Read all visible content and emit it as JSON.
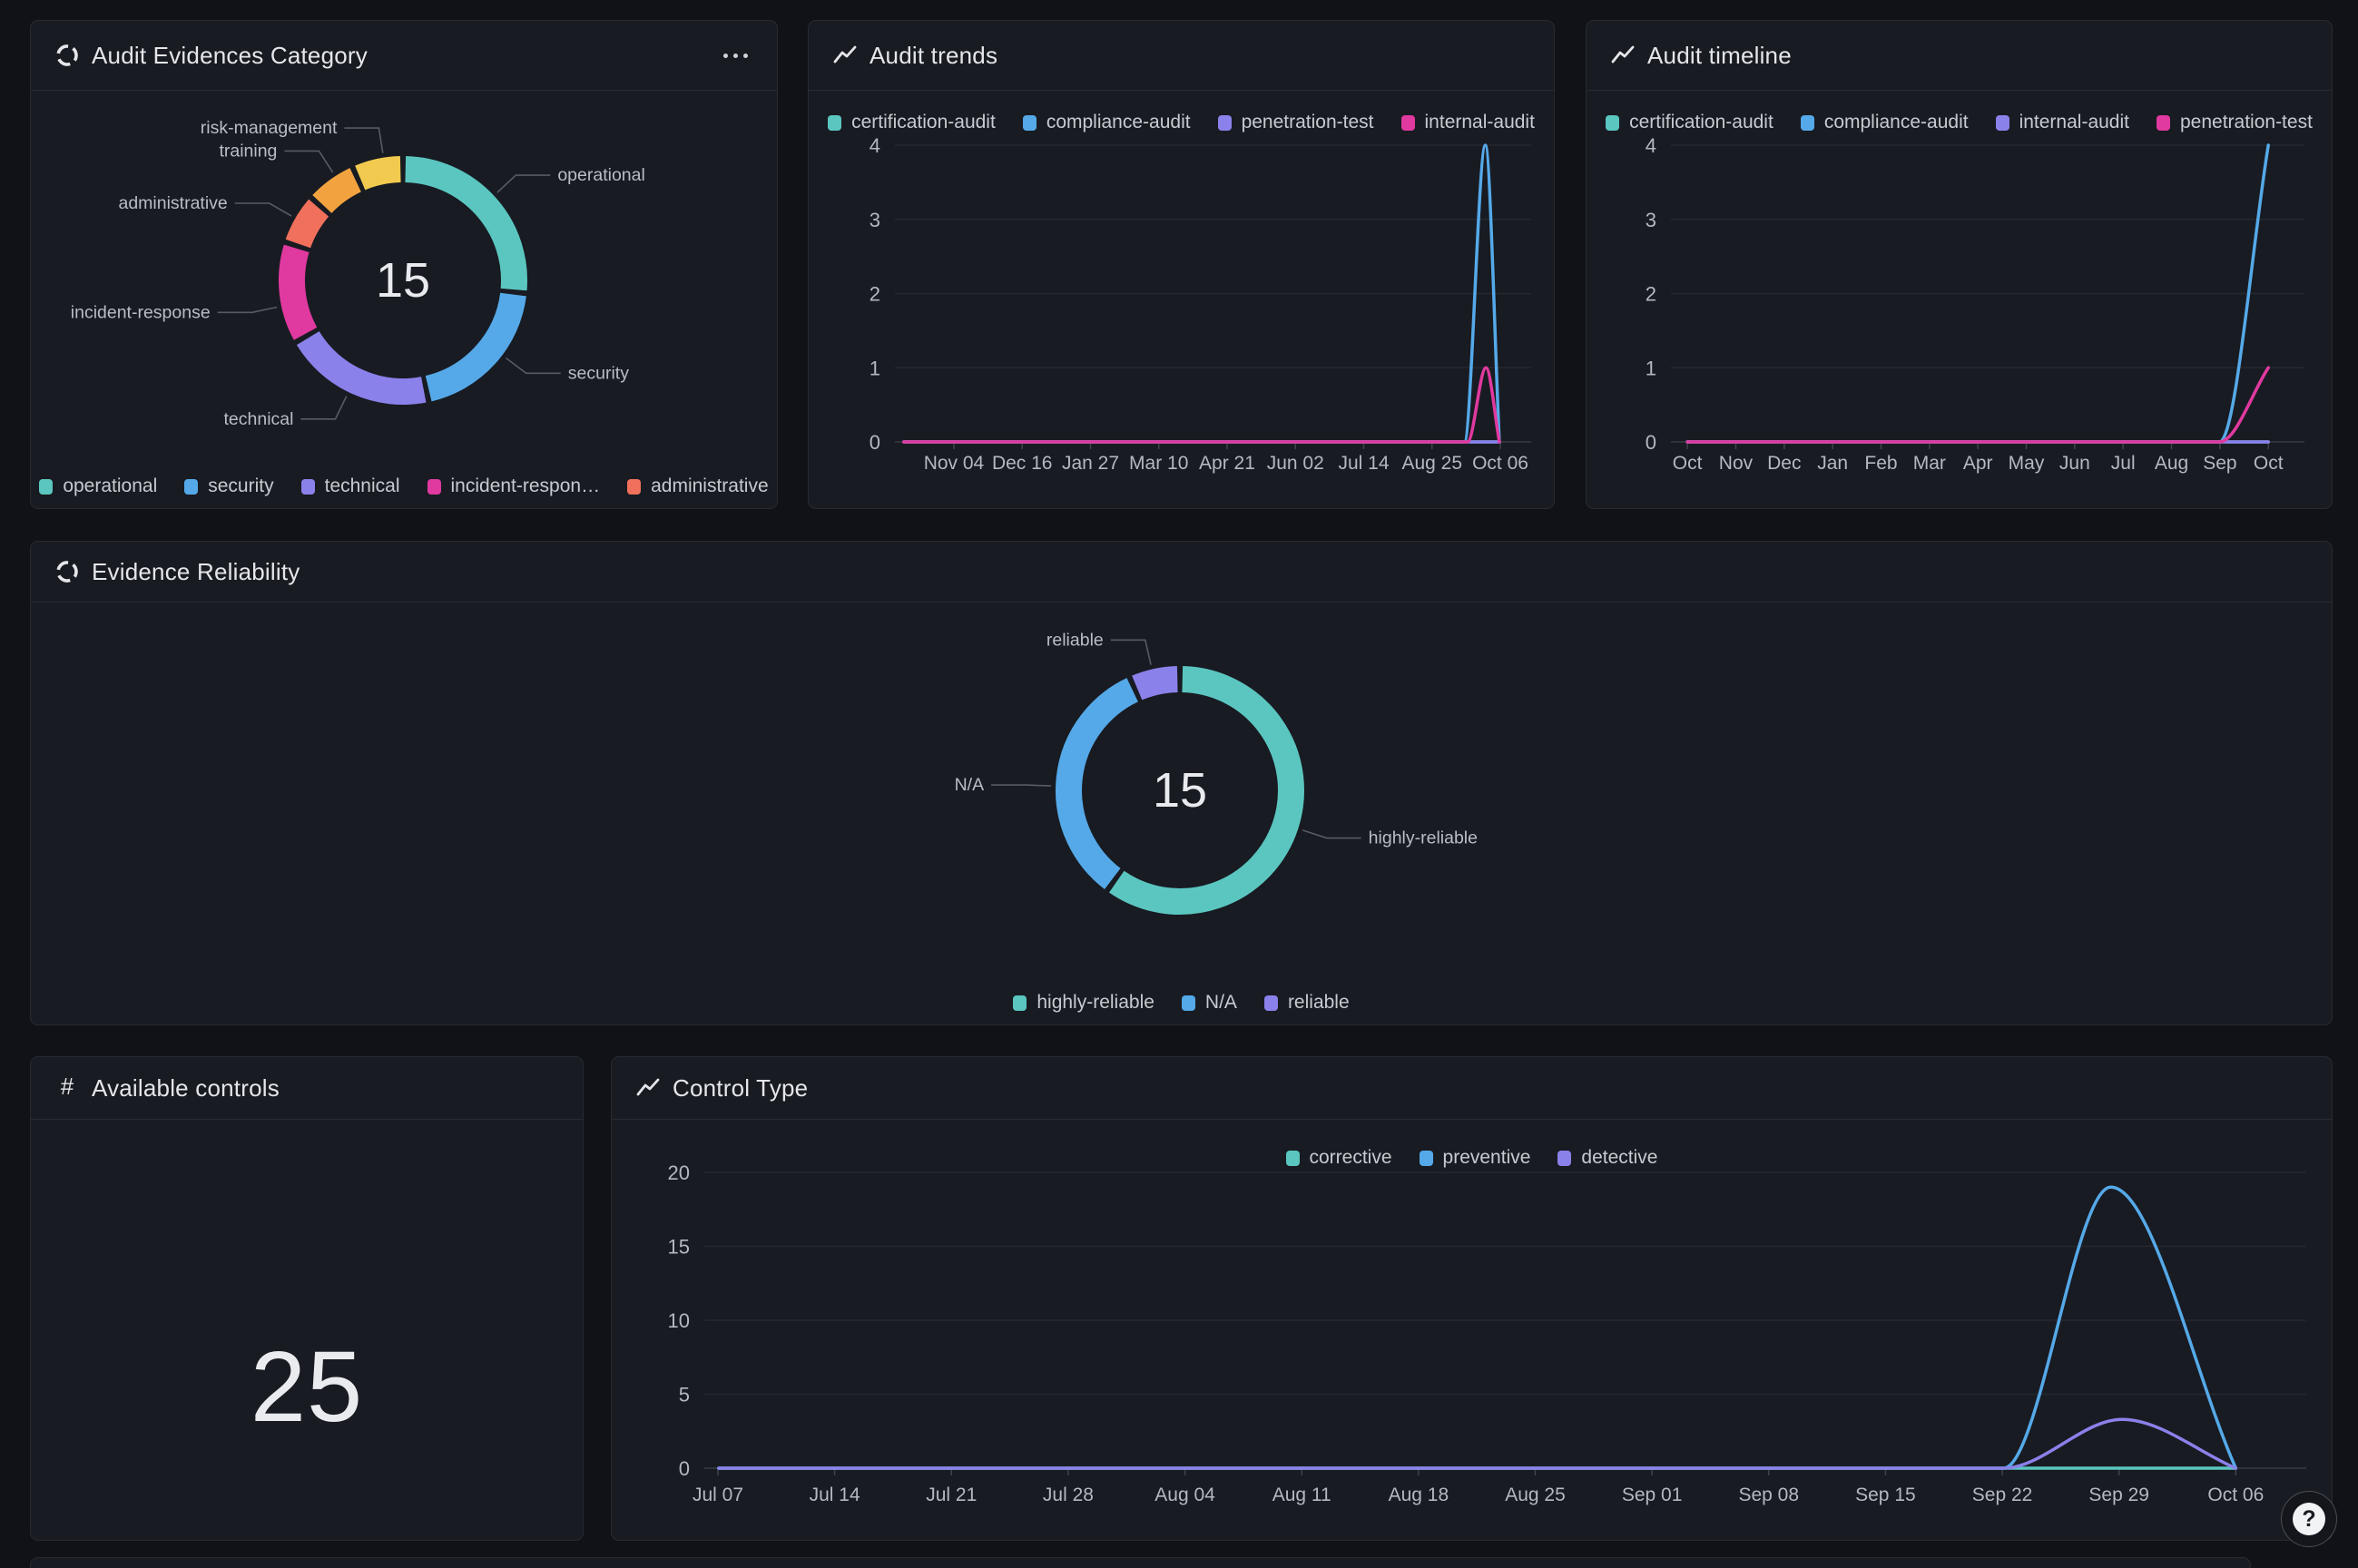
{
  "page": {
    "background": "#111217"
  },
  "palette": {
    "teal": "#5bc6c0",
    "blue": "#55a9e8",
    "purple": "#8b81ea",
    "pink": "#e0399f",
    "coral": "#f0705c",
    "orange": "#f2a33f",
    "yellow": "#f1ca4f"
  },
  "fab": {
    "label": "?",
    "icon": "help-icon"
  },
  "panels": {
    "cat": {
      "title": "Audit Evidences Category",
      "icon": "donut-chart-icon",
      "menu_icon": "more-horizontal-icon",
      "chart_data": {
        "type": "donut",
        "total": 15,
        "center_label": "15",
        "slices": [
          {
            "label": "operational",
            "value": 4,
            "color": "#5bc6c0",
            "callout": {
              "angle": 47,
              "side": "right"
            }
          },
          {
            "label": "security",
            "value": 3,
            "color": "#55a9e8",
            "callout": {
              "angle": 127,
              "side": "right"
            }
          },
          {
            "label": "technical",
            "value": 3,
            "color": "#8b81ea",
            "callout": {
              "angle": 206,
              "side": "left"
            }
          },
          {
            "label": "incident-response",
            "value": 2,
            "color": "#e0399f",
            "callout": {
              "angle": 258,
              "side": "left"
            }
          },
          {
            "label": "administrative",
            "value": 1,
            "color": "#f0705c",
            "callout": {
              "angle": 300,
              "side": "left"
            }
          },
          {
            "label": "training",
            "value": 1,
            "color": "#f2a33f",
            "callout": {
              "angle": 327,
              "side": "left"
            }
          },
          {
            "label": "risk-management",
            "value": 1,
            "color": "#f1ca4f",
            "callout": {
              "angle": 351,
              "side": "left"
            }
          }
        ]
      },
      "legend": [
        {
          "label": "operational",
          "color": "#5bc6c0"
        },
        {
          "label": "security",
          "color": "#55a9e8"
        },
        {
          "label": "technical",
          "color": "#8b81ea"
        },
        {
          "label": "incident-respon…",
          "color": "#e0399f"
        },
        {
          "label": "administrative",
          "color": "#f0705c"
        }
      ]
    },
    "trends": {
      "title": "Audit trends",
      "icon": "trend-icon",
      "chart_data": {
        "type": "line",
        "y_max": 4,
        "y_ticks": [
          "0",
          "1",
          "2",
          "3",
          "4"
        ],
        "x_ticks": [
          "Nov 04",
          "Dec 16",
          "Jan 27",
          "Mar 10",
          "Apr 21",
          "Jun 02",
          "Jul 14",
          "Aug 25",
          "Oct 06"
        ],
        "grid": true,
        "legend_position": "top",
        "series": [
          {
            "name": "certification-audit",
            "color": "#5bc6c0",
            "points": [
              [
                0.014,
                0
              ],
              [
                0.95,
                0
              ]
            ]
          },
          {
            "name": "compliance-audit",
            "color": "#55a9e8",
            "points": [
              [
                0.014,
                0
              ],
              [
                0.895,
                0
              ],
              [
                0.928,
                4
              ],
              [
                0.95,
                0
              ]
            ]
          },
          {
            "name": "penetration-test",
            "color": "#8b81ea",
            "points": [
              [
                0.014,
                0
              ],
              [
                0.95,
                0
              ]
            ]
          },
          {
            "name": "internal-audit",
            "color": "#e0399f",
            "points": [
              [
                0.014,
                0
              ],
              [
                0.9,
                0
              ],
              [
                0.929,
                1
              ],
              [
                0.95,
                0
              ]
            ]
          }
        ]
      },
      "legend": [
        {
          "label": "certification-audit",
          "color": "#5bc6c0"
        },
        {
          "label": "compliance-audit",
          "color": "#55a9e8"
        },
        {
          "label": "penetration-test",
          "color": "#8b81ea"
        },
        {
          "label": "internal-audit",
          "color": "#e0399f"
        }
      ]
    },
    "timeline": {
      "title": "Audit timeline",
      "icon": "trend-icon",
      "chart_data": {
        "type": "line",
        "y_max": 4,
        "y_ticks": [
          "0",
          "1",
          "2",
          "3",
          "4"
        ],
        "x_ticks": [
          "Oct",
          "Nov",
          "Dec",
          "Jan",
          "Feb",
          "Mar",
          "Apr",
          "May",
          "Jun",
          "Jul",
          "Aug",
          "Sep",
          "Oct"
        ],
        "grid": true,
        "legend_position": "top",
        "series": [
          {
            "name": "certification-audit",
            "color": "#5bc6c0",
            "points": [
              [
                0.026,
                0
              ],
              [
                0.943,
                0
              ]
            ]
          },
          {
            "name": "compliance-audit",
            "color": "#55a9e8",
            "points": [
              [
                0.026,
                0
              ],
              [
                0.866,
                0
              ],
              [
                0.943,
                4
              ]
            ]
          },
          {
            "name": "internal-audit",
            "color": "#8b81ea",
            "points": [
              [
                0.026,
                0
              ],
              [
                0.943,
                0
              ]
            ]
          },
          {
            "name": "penetration-test",
            "color": "#e0399f",
            "points": [
              [
                0.026,
                0
              ],
              [
                0.866,
                0
              ],
              [
                0.943,
                1
              ]
            ]
          }
        ]
      },
      "legend": [
        {
          "label": "certification-audit",
          "color": "#5bc6c0"
        },
        {
          "label": "compliance-audit",
          "color": "#55a9e8"
        },
        {
          "label": "internal-audit",
          "color": "#8b81ea"
        },
        {
          "label": "penetration-test",
          "color": "#e0399f"
        }
      ]
    },
    "reliability": {
      "title": "Evidence Reliability",
      "icon": "donut-chart-icon",
      "chart_data": {
        "type": "donut",
        "total": 15,
        "center_label": "15",
        "slices": [
          {
            "label": "highly-reliable",
            "value": 9,
            "color": "#5bc6c0",
            "callout": {
              "angle": 108,
              "side": "right"
            }
          },
          {
            "label": "N/A",
            "value": 5,
            "color": "#55a9e8",
            "callout": {
              "angle": 272,
              "side": "left"
            }
          },
          {
            "label": "reliable",
            "value": 1,
            "color": "#8b81ea",
            "callout": {
              "angle": 347,
              "side": "left"
            }
          }
        ]
      },
      "legend": [
        {
          "label": "highly-reliable",
          "color": "#5bc6c0"
        },
        {
          "label": "N/A",
          "color": "#55a9e8"
        },
        {
          "label": "reliable",
          "color": "#8b81ea"
        }
      ]
    },
    "controls": {
      "title": "Available controls",
      "icon": "hash-icon",
      "value": "25"
    },
    "controlType": {
      "title": "Control Type",
      "icon": "trend-icon",
      "chart_data": {
        "type": "line",
        "y_max": 20,
        "y_ticks": [
          "0",
          "5",
          "10",
          "15",
          "20"
        ],
        "x_ticks": [
          "Jul 07",
          "Jul 14",
          "Jul 21",
          "Jul 28",
          "Aug 04",
          "Aug 11",
          "Aug 18",
          "Aug 25",
          "Sep 01",
          "Sep 08",
          "Sep 15",
          "Sep 22",
          "Sep 29",
          "Oct 06"
        ],
        "grid": true,
        "legend_position": "top",
        "series": [
          {
            "name": "corrective",
            "color": "#5bc6c0",
            "points": [
              [
                0.009,
                0
              ],
              [
                0.956,
                0
              ]
            ]
          },
          {
            "name": "preventive",
            "color": "#55a9e8",
            "points": [
              [
                0.009,
                0
              ],
              [
                0.811,
                0
              ],
              [
                0.878,
                19
              ],
              [
                0.956,
                0
              ]
            ]
          },
          {
            "name": "detective",
            "color": "#8b81ea",
            "points": [
              [
                0.009,
                0
              ],
              [
                0.811,
                0
              ],
              [
                0.885,
                3.3
              ],
              [
                0.956,
                0
              ]
            ]
          }
        ]
      },
      "legend": [
        {
          "label": "corrective",
          "color": "#5bc6c0"
        },
        {
          "label": "preventive",
          "color": "#55a9e8"
        },
        {
          "label": "detective",
          "color": "#8b81ea"
        }
      ]
    }
  }
}
